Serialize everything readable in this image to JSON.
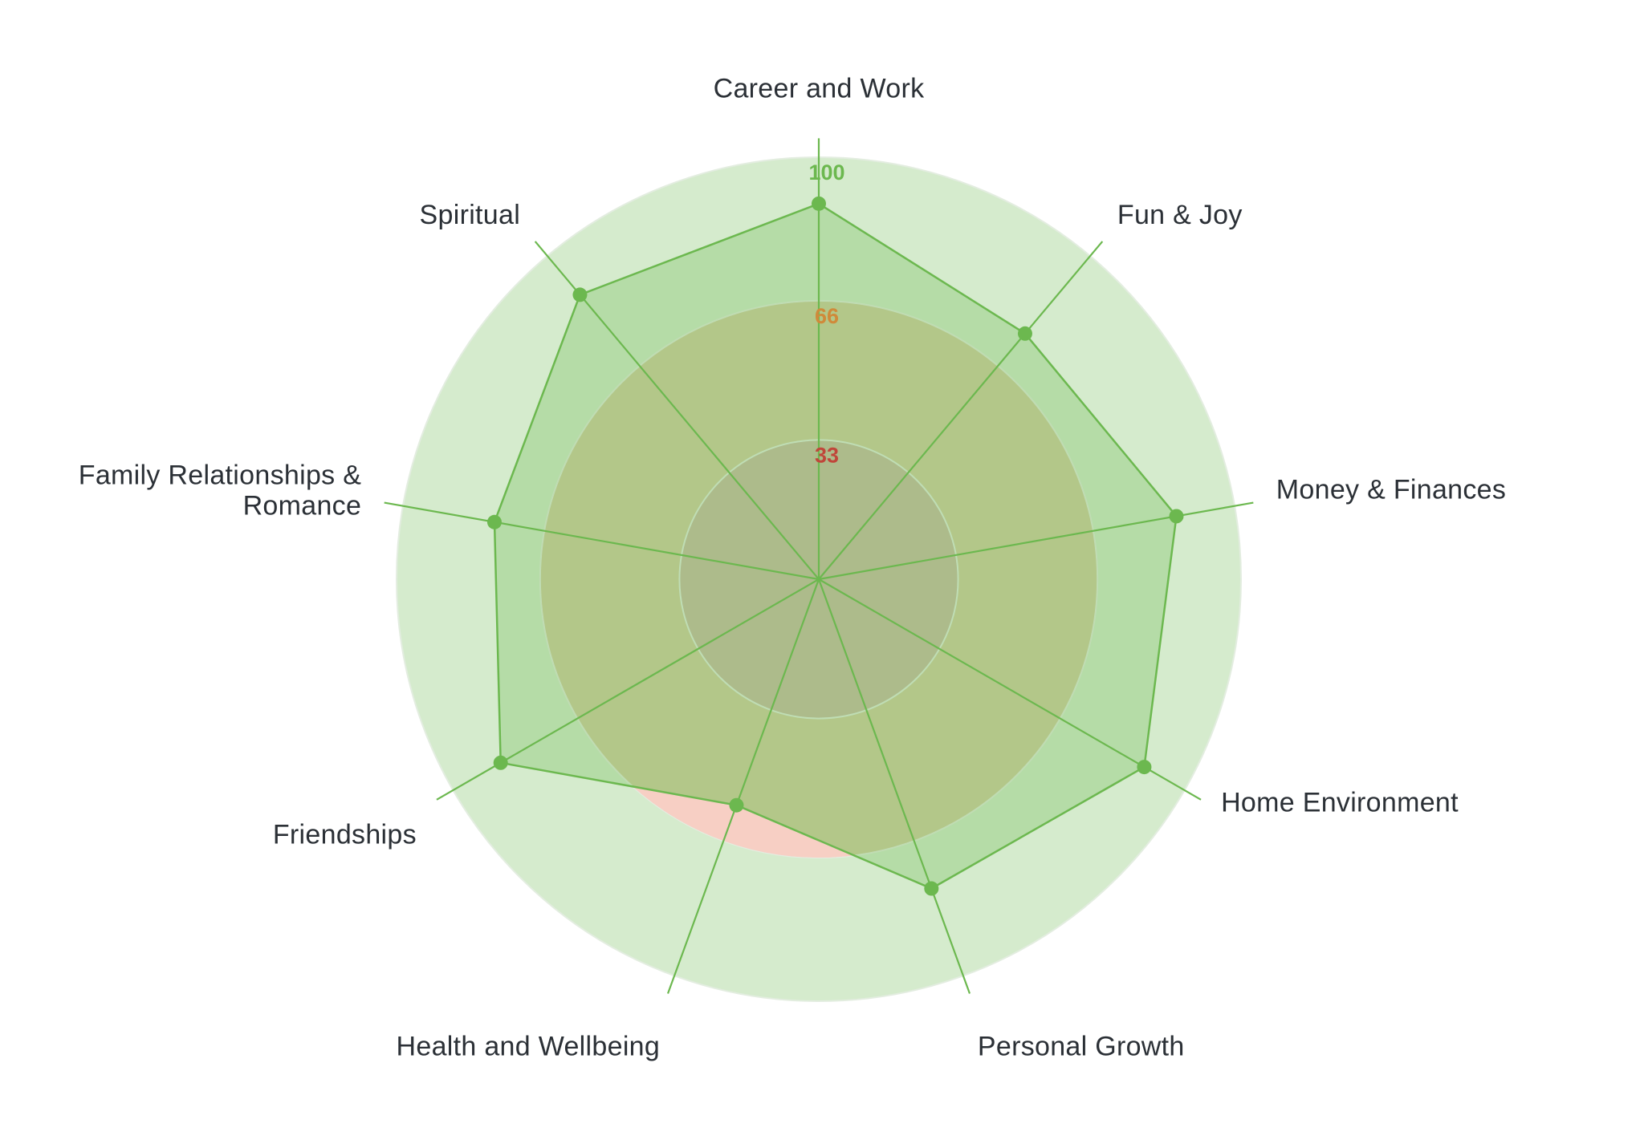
{
  "chart_data": {
    "type": "radar",
    "categories": [
      "Career and Work",
      "Fun & Joy",
      "Money & Finances",
      "Home Environment",
      "Personal Growth",
      "Health and Wellbeing",
      "Friendships",
      "Family Relationships & Romance",
      "Spiritual"
    ],
    "series": [
      {
        "values": [
          89,
          76,
          86,
          89,
          78,
          57,
          87,
          78,
          88
        ],
        "color": "#6cb84f"
      }
    ],
    "range": [
      0,
      100
    ],
    "rings": [
      {
        "value": 33,
        "label": "33",
        "label_color": "#c0463a",
        "fill": "#c9bca5"
      },
      {
        "value": 66,
        "label": "66",
        "label_color": "#d08a3a",
        "fill": "#d2cda2"
      },
      {
        "value": 100,
        "label": "100",
        "label_color": "#6cb84f",
        "fill": "#d5ebcd"
      }
    ],
    "under_threshold_fill": "#f7cfc4",
    "series_fill": "#6cb84f",
    "axis_color": "#6cb84f"
  }
}
